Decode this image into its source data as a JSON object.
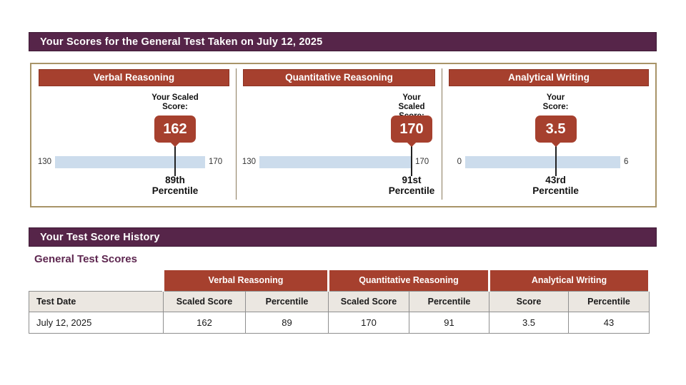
{
  "colors": {
    "purple_header": "#562549",
    "brick_red": "#a6402e",
    "bar_blue": "#ccdcec",
    "panel_border_tan": "#a89468",
    "table_header_bg": "#ebe7e1"
  },
  "scores_header": {
    "title": "Your Scores for the General Test Taken on July 12, 2025"
  },
  "panels": [
    {
      "title": "Verbal Reasoning",
      "label_line1": "Your Scaled",
      "label_line2": "Score:",
      "score": "162",
      "scale_min": "130",
      "scale_max": "170",
      "perc_line1": "89th",
      "perc_line2": "Percentile"
    },
    {
      "title": "Quantitative Reasoning",
      "label_line1": "Your Scaled",
      "label_line2": "Score:",
      "score": "170",
      "scale_min": "130",
      "scale_max": "170",
      "perc_line1": "91st",
      "perc_line2": "Percentile"
    },
    {
      "title": "Analytical Writing",
      "label_line1": "Your",
      "label_line2": "Score:",
      "score": "3.5",
      "scale_min": "0",
      "scale_max": "6",
      "perc_line1": "43rd",
      "perc_line2": "Percentile"
    }
  ],
  "history_header": {
    "title": "Your Test Score History"
  },
  "history": {
    "subtitle": "General Test Scores",
    "table": {
      "group_headers": [
        "Verbal Reasoning",
        "Quantitative Reasoning",
        "Analytical Writing"
      ],
      "columns": [
        "Test Date",
        "Scaled Score",
        "Percentile",
        "Scaled Score",
        "Percentile",
        "Score",
        "Percentile"
      ],
      "rows": [
        [
          "July 12, 2025",
          "162",
          "89",
          "170",
          "91",
          "3.5",
          "43"
        ]
      ]
    }
  },
  "chart_data": [
    {
      "type": "bar",
      "title": "Verbal Reasoning",
      "xlabel": "Scaled Score",
      "axis_range": [
        130,
        170
      ],
      "value": 162,
      "percentile": 89,
      "legend_position": "none",
      "grid": false
    },
    {
      "type": "bar",
      "title": "Quantitative Reasoning",
      "xlabel": "Scaled Score",
      "axis_range": [
        130,
        170
      ],
      "value": 170,
      "percentile": 91,
      "legend_position": "none",
      "grid": false
    },
    {
      "type": "bar",
      "title": "Analytical Writing",
      "xlabel": "Score",
      "axis_range": [
        0,
        6
      ],
      "value": 3.5,
      "percentile": 43,
      "legend_position": "none",
      "grid": false
    }
  ]
}
